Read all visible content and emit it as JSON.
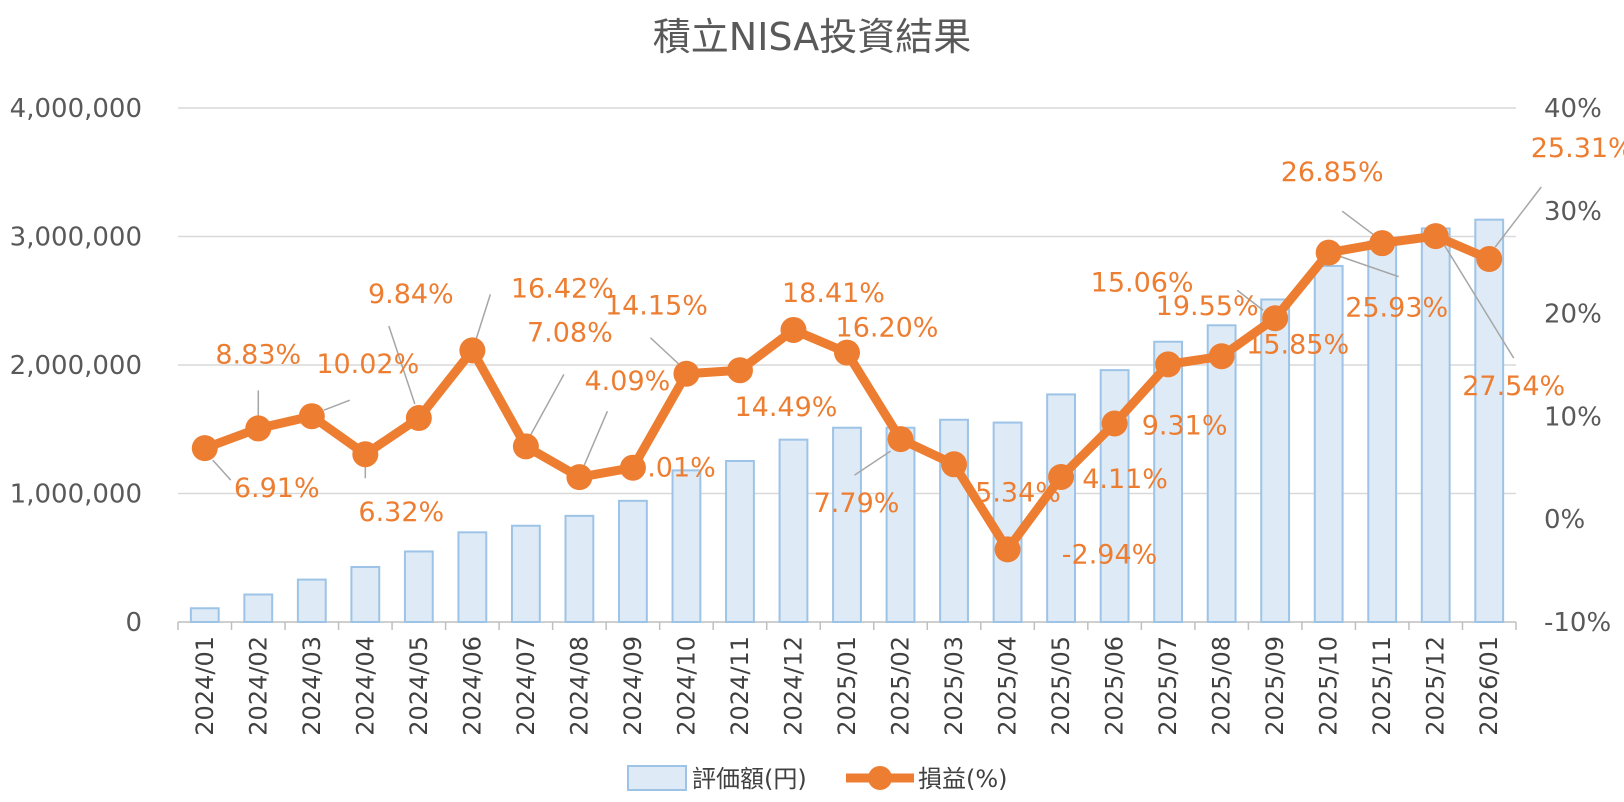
{
  "chart_data": {
    "type": "bar+line",
    "title": "積立NISA投資結果",
    "categories": [
      "2024/01",
      "2024/02",
      "2024/03",
      "2024/04",
      "2024/05",
      "2024/06",
      "2024/07",
      "2024/08",
      "2024/09",
      "2024/10",
      "2024/11",
      "2024/12",
      "2025/01",
      "2025/02",
      "2025/03",
      "2025/04",
      "2025/05",
      "2025/06",
      "2025/07",
      "2025/08",
      "2025/09",
      "2025/10",
      "2025/11",
      "2025/12",
      "2026/01"
    ],
    "series": [
      {
        "name": "評価額(円)",
        "type": "bar",
        "axis": "left",
        "color": "#DEEBF7",
        "border_color": "#9DC3E6",
        "values": [
          107000,
          214000,
          330000,
          428000,
          549000,
          698000,
          749000,
          826000,
          943000,
          1180000,
          1253000,
          1419000,
          1512000,
          1512000,
          1574000,
          1552000,
          1771000,
          1960000,
          2181000,
          2309000,
          2510000,
          2771000,
          2960000,
          3063000,
          3131000
        ]
      },
      {
        "name": "損益(%)",
        "type": "line",
        "axis": "right",
        "color": "#ED7D31",
        "values": [
          6.91,
          8.83,
          10.02,
          6.32,
          9.84,
          16.42,
          7.08,
          4.09,
          5.01,
          14.15,
          14.49,
          18.41,
          16.2,
          7.79,
          5.34,
          -2.94,
          4.11,
          9.31,
          15.06,
          15.85,
          19.55,
          25.93,
          26.85,
          27.54,
          25.31
        ],
        "labels": [
          "6.91%",
          "8.83%",
          "10.02%",
          "6.32%",
          "9.84%",
          "16.42%",
          "7.08%",
          "4.09%",
          "5.01%",
          "14.15%",
          "14.49%",
          "18.41%",
          "16.20%",
          "7.79%",
          "5.34%",
          "-2.94%",
          "4.11%",
          "9.31%",
          "15.06%",
          "15.85%",
          "19.55%",
          "25.93%",
          "26.85%",
          "27.54%",
          "25.31%"
        ]
      }
    ],
    "left_axis": {
      "min": 0,
      "max": 4000000,
      "ticks": [
        "0",
        "1,000,000",
        "2,000,000",
        "3,000,000",
        "4,000,000"
      ]
    },
    "right_axis": {
      "min": -10,
      "max": 40,
      "ticks": [
        "-10%",
        "0%",
        "10%",
        "20%",
        "30%",
        "40%"
      ]
    },
    "grid": true,
    "legend": "bottom"
  }
}
